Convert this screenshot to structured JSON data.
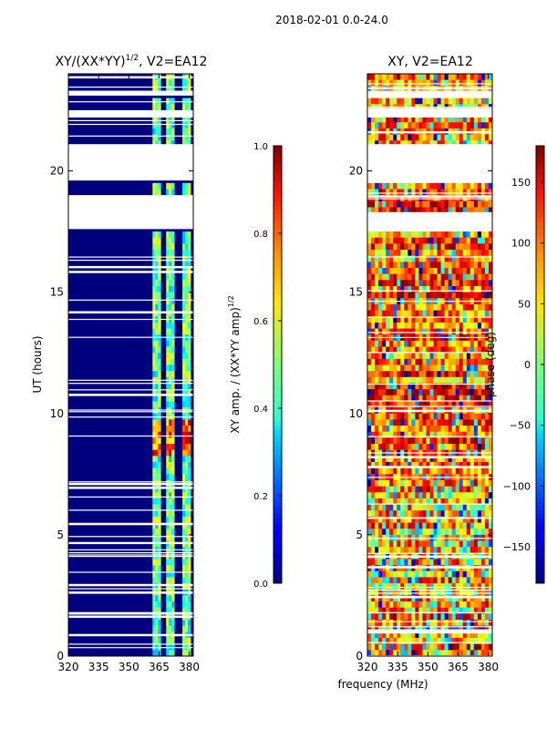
{
  "figure": {
    "suptitle": "2018-02-01 0.0-24.0",
    "xlabel": "frequency (MHz)"
  },
  "chart_data": [
    {
      "type": "heatmap",
      "panel": "amplitude",
      "title_main": "XY/(XX*YY)",
      "title_exp": "1/2",
      "title_suffix": ", V2=EA12",
      "ylabel": "UT (hours)",
      "xlim": [
        320,
        382
      ],
      "ylim": [
        0,
        24
      ],
      "xticks": [
        320,
        335,
        350,
        365,
        380
      ],
      "yticks": [
        0,
        5,
        10,
        15,
        20
      ],
      "colormap": "jet",
      "signal_channels_mhz": [
        [
          362,
          366
        ],
        [
          369,
          372
        ],
        [
          376,
          380
        ]
      ],
      "gap_ranges_hours": [
        [
          17.6,
          19.0
        ],
        [
          19.6,
          21.1
        ],
        [
          22.2,
          22.5
        ],
        [
          23.1,
          23.3
        ]
      ],
      "colorbar": {
        "label_main": "XY amp. / (XX*YY amp)",
        "label_exp": "1/2",
        "range": [
          0.0,
          1.0
        ],
        "ticks": [
          "0.0",
          "0.2",
          "0.4",
          "0.6",
          "0.8",
          "1.0"
        ]
      }
    },
    {
      "type": "heatmap",
      "panel": "phase",
      "title": "XY, V2=EA12",
      "xlim": [
        320,
        382
      ],
      "ylim": [
        0,
        24
      ],
      "xticks": [
        320,
        335,
        350,
        365,
        380
      ],
      "yticks": [
        0,
        5,
        10,
        15,
        20
      ],
      "colormap": "jet",
      "gap_ranges_hours": [
        [
          17.6,
          18.3
        ],
        [
          19.6,
          21.1
        ],
        [
          22.2,
          22.5
        ],
        [
          23.1,
          23.3
        ]
      ],
      "colorbar": {
        "label": "phase (deg)",
        "range": [
          -180,
          180
        ],
        "ticks": [
          "−150",
          "−100",
          "−50",
          "0",
          "50",
          "100",
          "150"
        ]
      }
    }
  ]
}
